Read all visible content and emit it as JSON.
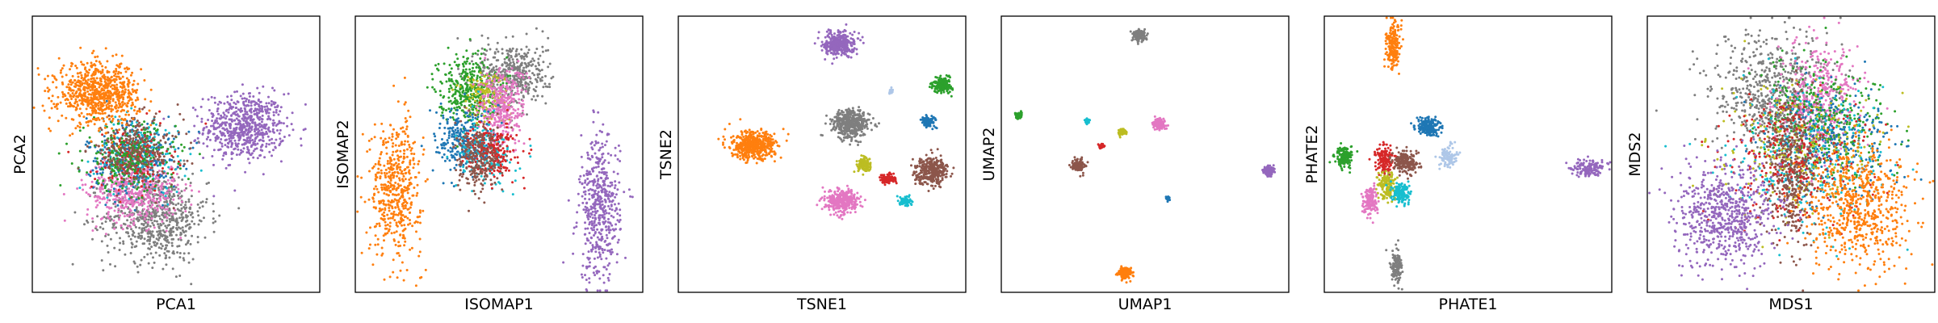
{
  "colors": {
    "blue": "#1f77b4",
    "orange": "#ff7f0e",
    "green": "#2ca02c",
    "red": "#d62728",
    "purple": "#9467bd",
    "brown": "#8c564b",
    "pink": "#e377c2",
    "gray": "#7f7f7f",
    "olive": "#bcbd22",
    "cyan": "#17becf",
    "lightblue": "#aec7e8"
  },
  "chart_data": [
    {
      "type": "scatter",
      "xlabel": "PCA1",
      "ylabel": "PCA2",
      "xlim": [
        0,
        100
      ],
      "ylim": [
        0,
        100
      ],
      "grid": false,
      "clusters": [
        {
          "color": "purple",
          "cx": 74,
          "cy": 60,
          "sx": 7,
          "sy": 6,
          "n": 650
        },
        {
          "color": "gray",
          "cx": 43,
          "cy": 27,
          "sx": 9,
          "sy": 8,
          "n": 650
        },
        {
          "color": "pink",
          "cx": 35,
          "cy": 37,
          "sx": 8,
          "sy": 6,
          "n": 500
        },
        {
          "color": "blue",
          "cx": 35,
          "cy": 50,
          "sx": 8,
          "sy": 7,
          "n": 300
        },
        {
          "color": "cyan",
          "cx": 38,
          "cy": 50,
          "sx": 8,
          "sy": 7,
          "n": 150
        },
        {
          "color": "red",
          "cx": 35,
          "cy": 48,
          "sx": 7,
          "sy": 6,
          "n": 150
        },
        {
          "color": "green",
          "cx": 34,
          "cy": 49,
          "sx": 8,
          "sy": 6,
          "n": 250
        },
        {
          "color": "brown",
          "cx": 36,
          "cy": 51,
          "sx": 8,
          "sy": 6,
          "n": 250
        },
        {
          "color": "orange",
          "cx": 23,
          "cy": 72,
          "sx": 7,
          "sy": 5.5,
          "n": 750
        }
      ]
    },
    {
      "type": "scatter",
      "xlabel": "ISOMAP1",
      "ylabel": "ISOMAP2",
      "xlim": [
        0,
        100
      ],
      "ylim": [
        0,
        100
      ],
      "grid": false,
      "clusters": [
        {
          "color": "purple",
          "cx": 85,
          "cy": 30,
          "sx": 3.5,
          "sy": 13,
          "n": 500
        },
        {
          "color": "orange",
          "cx": 14,
          "cy": 38,
          "sx": 4.5,
          "sy": 12,
          "n": 500
        },
        {
          "color": "gray",
          "cx": 55,
          "cy": 79,
          "sx": 6,
          "sy": 6,
          "n": 400
        },
        {
          "color": "green",
          "cx": 39,
          "cy": 74,
          "sx": 5,
          "sy": 6,
          "n": 350
        },
        {
          "color": "olive",
          "cx": 45,
          "cy": 71,
          "sx": 4,
          "sy": 5,
          "n": 150
        },
        {
          "color": "pink",
          "cx": 51,
          "cy": 67,
          "sx": 4,
          "sy": 7,
          "n": 350
        },
        {
          "color": "blue",
          "cx": 38,
          "cy": 55,
          "sx": 5,
          "sy": 6,
          "n": 250
        },
        {
          "color": "cyan",
          "cx": 45,
          "cy": 50,
          "sx": 5,
          "sy": 6,
          "n": 150
        },
        {
          "color": "red",
          "cx": 48,
          "cy": 52,
          "sx": 4,
          "sy": 5,
          "n": 200
        },
        {
          "color": "brown",
          "cx": 43,
          "cy": 48,
          "sx": 4,
          "sy": 6,
          "n": 250
        }
      ]
    },
    {
      "type": "scatter",
      "xlabel": "TSNE1",
      "ylabel": "TSNE2",
      "xlim": [
        0,
        100
      ],
      "ylim": [
        0,
        100
      ],
      "grid": false,
      "clusters": [
        {
          "color": "purple",
          "cx": 56,
          "cy": 90,
          "sx": 2.6,
          "sy": 2.2,
          "n": 350
        },
        {
          "color": "green",
          "cx": 92,
          "cy": 75,
          "sx": 1.6,
          "sy": 1.3,
          "n": 200
        },
        {
          "color": "lightblue",
          "cx": 74,
          "cy": 73,
          "sx": 0.5,
          "sy": 0.5,
          "n": 20
        },
        {
          "color": "blue",
          "cx": 87,
          "cy": 62,
          "sx": 1.2,
          "sy": 1.0,
          "n": 120
        },
        {
          "color": "gray",
          "cx": 60,
          "cy": 61,
          "sx": 3.2,
          "sy": 2.6,
          "n": 450
        },
        {
          "color": "orange",
          "cx": 26,
          "cy": 53,
          "sx": 3.8,
          "sy": 2.5,
          "n": 500
        },
        {
          "color": "olive",
          "cx": 65,
          "cy": 46,
          "sx": 1.3,
          "sy": 1.2,
          "n": 120
        },
        {
          "color": "brown",
          "cx": 88,
          "cy": 44,
          "sx": 2.8,
          "sy": 2.4,
          "n": 350
        },
        {
          "color": "red",
          "cx": 73,
          "cy": 41,
          "sx": 1.3,
          "sy": 1.0,
          "n": 100
        },
        {
          "color": "pink",
          "cx": 57,
          "cy": 33,
          "sx": 2.8,
          "sy": 2.1,
          "n": 350
        },
        {
          "color": "cyan",
          "cx": 79,
          "cy": 33,
          "sx": 1.0,
          "sy": 0.9,
          "n": 80
        }
      ]
    },
    {
      "type": "scatter",
      "xlabel": "UMAP1",
      "ylabel": "UMAP2",
      "xlim": [
        0,
        100
      ],
      "ylim": [
        0,
        100
      ],
      "grid": false,
      "clusters": [
        {
          "color": "gray",
          "cx": 48,
          "cy": 93,
          "sx": 1.0,
          "sy": 1.0,
          "n": 150
        },
        {
          "color": "green",
          "cx": 6,
          "cy": 64,
          "sx": 0.6,
          "sy": 0.6,
          "n": 60
        },
        {
          "color": "cyan",
          "cx": 30,
          "cy": 62,
          "sx": 0.4,
          "sy": 0.4,
          "n": 40
        },
        {
          "color": "pink",
          "cx": 55,
          "cy": 61,
          "sx": 1.0,
          "sy": 0.9,
          "n": 150
        },
        {
          "color": "olive",
          "cx": 42,
          "cy": 58,
          "sx": 0.6,
          "sy": 0.5,
          "n": 60
        },
        {
          "color": "red",
          "cx": 35,
          "cy": 53,
          "sx": 0.4,
          "sy": 0.4,
          "n": 40
        },
        {
          "color": "brown",
          "cx": 27,
          "cy": 46,
          "sx": 1.1,
          "sy": 1.0,
          "n": 150
        },
        {
          "color": "purple",
          "cx": 93,
          "cy": 44,
          "sx": 0.8,
          "sy": 0.9,
          "n": 120
        },
        {
          "color": "blue",
          "cx": 58,
          "cy": 34,
          "sx": 0.4,
          "sy": 0.4,
          "n": 40
        },
        {
          "color": "orange",
          "cx": 43,
          "cy": 7,
          "sx": 1.2,
          "sy": 1.0,
          "n": 150
        }
      ]
    },
    {
      "type": "scatter",
      "xlabel": "PHATE1",
      "ylabel": "PHATE2",
      "xlim": [
        0,
        100
      ],
      "ylim": [
        0,
        100
      ],
      "grid": false,
      "clusters": [
        {
          "color": "orange",
          "cx": 24,
          "cy": 89,
          "sx": 1.2,
          "sy": 4,
          "n": 200
        },
        {
          "color": "blue",
          "cx": 36,
          "cy": 60,
          "sx": 2,
          "sy": 1.6,
          "n": 200
        },
        {
          "color": "green",
          "cx": 7,
          "cy": 49,
          "sx": 1.6,
          "sy": 1.8,
          "n": 150
        },
        {
          "color": "red",
          "cx": 21,
          "cy": 48,
          "sx": 1.5,
          "sy": 2.5,
          "n": 150
        },
        {
          "color": "brown",
          "cx": 28,
          "cy": 47,
          "sx": 2.2,
          "sy": 2.0,
          "n": 200
        },
        {
          "color": "lightblue",
          "cx": 43,
          "cy": 49,
          "sx": 1.5,
          "sy": 2.0,
          "n": 100
        },
        {
          "color": "purple",
          "cx": 92,
          "cy": 45,
          "sx": 3.0,
          "sy": 1.5,
          "n": 150
        },
        {
          "color": "olive",
          "cx": 22,
          "cy": 39,
          "sx": 1.5,
          "sy": 2.5,
          "n": 150
        },
        {
          "color": "cyan",
          "cx": 27,
          "cy": 36,
          "sx": 1.5,
          "sy": 2.0,
          "n": 150
        },
        {
          "color": "pink",
          "cx": 16,
          "cy": 33,
          "sx": 1.2,
          "sy": 2.5,
          "n": 150
        },
        {
          "color": "gray",
          "cx": 25,
          "cy": 9,
          "sx": 1.0,
          "sy": 3.0,
          "n": 150
        }
      ]
    },
    {
      "type": "scatter",
      "xlabel": "MDS1",
      "ylabel": "MDS2",
      "xlim": [
        0,
        100
      ],
      "ylim": [
        0,
        100
      ],
      "grid": false,
      "clusters": [
        {
          "color": "gray",
          "cx": 44,
          "cy": 70,
          "sx": 11,
          "sy": 12,
          "n": 650
        },
        {
          "color": "pink",
          "cx": 60,
          "cy": 70,
          "sx": 7,
          "sy": 11,
          "n": 400
        },
        {
          "color": "green",
          "cx": 62,
          "cy": 62,
          "sx": 11,
          "sy": 10,
          "n": 350
        },
        {
          "color": "blue",
          "cx": 65,
          "cy": 55,
          "sx": 11,
          "sy": 10,
          "n": 300
        },
        {
          "color": "cyan",
          "cx": 56,
          "cy": 48,
          "sx": 14,
          "sy": 12,
          "n": 250
        },
        {
          "color": "olive",
          "cx": 52,
          "cy": 52,
          "sx": 14,
          "sy": 12,
          "n": 250
        },
        {
          "color": "brown",
          "cx": 50,
          "cy": 44,
          "sx": 4,
          "sy": 13,
          "n": 450
        },
        {
          "color": "red",
          "cx": 50,
          "cy": 48,
          "sx": 14,
          "sy": 12,
          "n": 250
        },
        {
          "color": "purple",
          "cx": 28,
          "cy": 28,
          "sx": 9,
          "sy": 9,
          "n": 650
        },
        {
          "color": "orange",
          "cx": 73,
          "cy": 31,
          "sx": 9,
          "sy": 11,
          "n": 650
        }
      ]
    }
  ]
}
